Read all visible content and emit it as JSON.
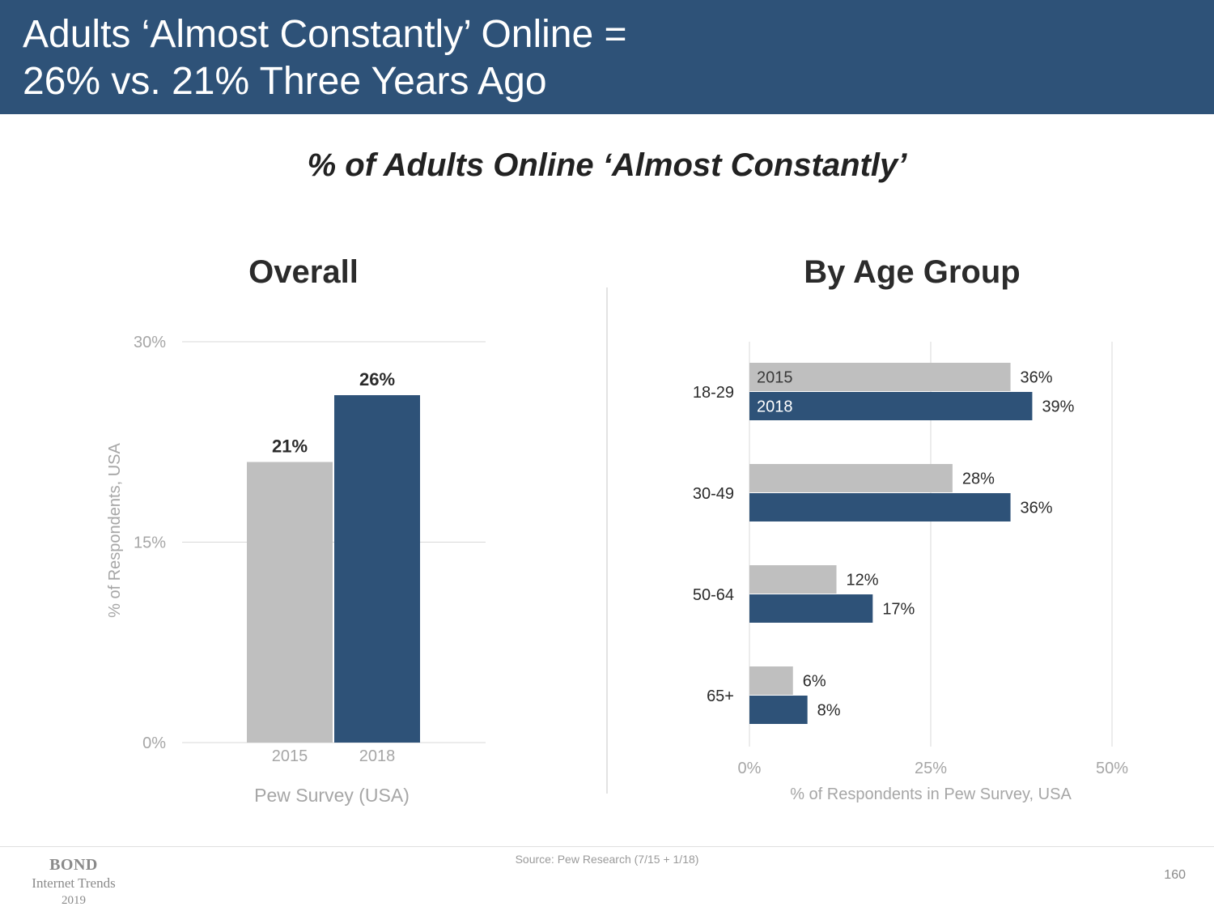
{
  "header": {
    "title": "Adults ‘Almost Constantly’ Online =\n26% vs. 21% Three Years Ago"
  },
  "subtitle": "% of Adults Online ‘Almost Constantly’",
  "colors": {
    "header_bg": "#2e5278",
    "series_2015": "#bfbfbf",
    "series_2018": "#2e5278",
    "axis_text": "#a6a6a6",
    "grid": "#d9d9d9"
  },
  "chart_data": [
    {
      "type": "bar",
      "title": "Overall",
      "categories": [
        "2015",
        "2018"
      ],
      "values": [
        21,
        26
      ],
      "value_labels": [
        "21%",
        "26%"
      ],
      "ylabel": "% of Respondents, USA",
      "xlabel": "Pew Survey (USA)",
      "ylim": [
        0,
        30
      ],
      "yticks": [
        0,
        15,
        30
      ],
      "ytick_labels": [
        "0%",
        "15%",
        "30%"
      ],
      "grid": true
    },
    {
      "type": "bar",
      "orientation": "horizontal",
      "title": "By Age Group",
      "categories": [
        "18-29",
        "30-49",
        "50-64",
        "65+"
      ],
      "series": [
        {
          "name": "2015",
          "values": [
            36,
            28,
            12,
            6
          ],
          "labels": [
            "36%",
            "28%",
            "12%",
            "6%"
          ]
        },
        {
          "name": "2018",
          "values": [
            39,
            36,
            17,
            8
          ],
          "labels": [
            "39%",
            "36%",
            "17%",
            "8%"
          ]
        }
      ],
      "xlabel": "% of Respondents in Pew Survey, USA",
      "xlim": [
        0,
        50
      ],
      "xticks": [
        0,
        25,
        50
      ],
      "xtick_labels": [
        "0%",
        "25%",
        "50%"
      ],
      "grid": true
    }
  ],
  "footer": {
    "logo_line1": "BOND",
    "logo_line2": "Internet Trends",
    "logo_line3": "2019",
    "source": "Source: Pew Research (7/15 + 1/18)",
    "page_number": "160"
  }
}
